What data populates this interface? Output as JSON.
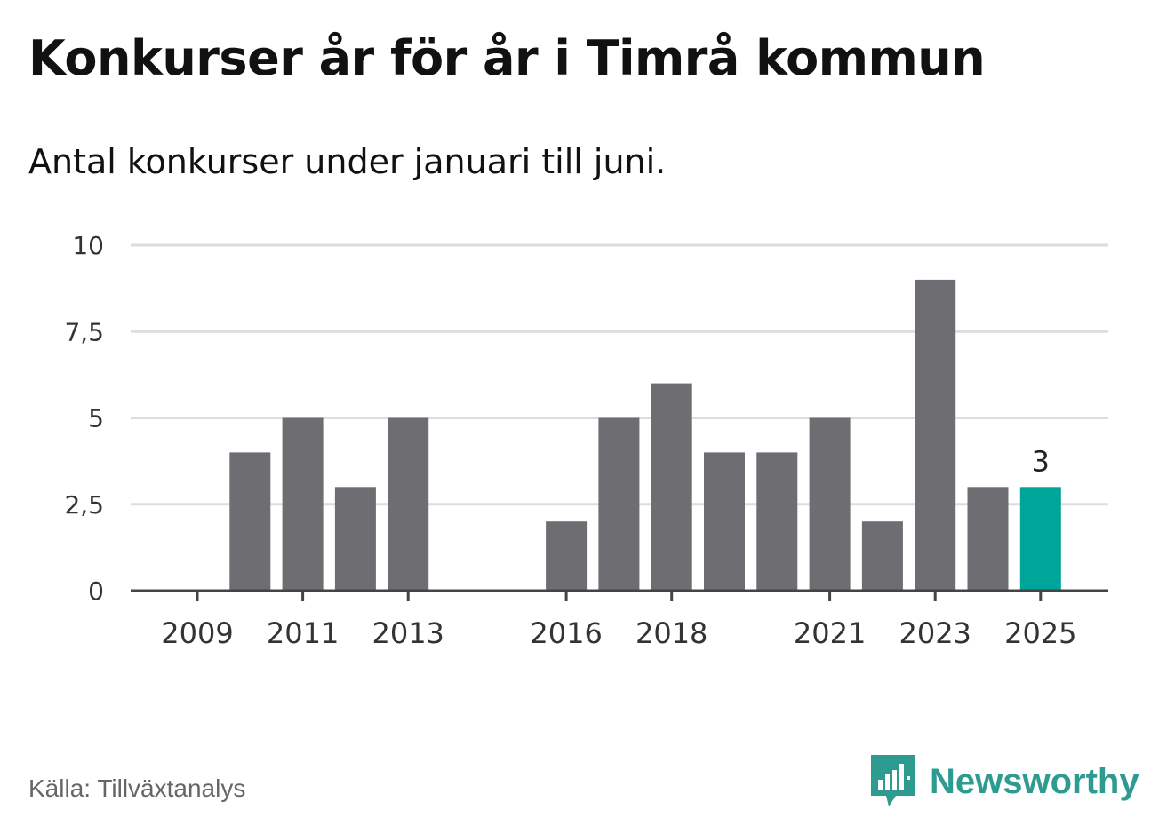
{
  "header": {
    "title": "Konkurser år för år i Timrå kommun",
    "subtitle": "Antal konkurser under januari till juni."
  },
  "footer": {
    "source": "Källa: Tillväxtanalys",
    "brand": "Newsworthy",
    "brand_icon": "newsworthy-bar-chart-speech-bubble-icon",
    "brand_color": "#2e9b91"
  },
  "colors": {
    "bar": "#6e6d72",
    "highlight": "#00a599",
    "grid": "#dddddd",
    "axis": "#444444"
  },
  "chart_data": {
    "type": "bar",
    "categories": [
      "2009",
      "2010",
      "2011",
      "2012",
      "2013",
      "2014",
      "2015",
      "2016",
      "2017",
      "2018",
      "2019",
      "2020",
      "2021",
      "2022",
      "2023",
      "2024",
      "2025"
    ],
    "values": [
      0,
      4,
      5,
      3,
      5,
      0,
      0,
      2,
      5,
      6,
      4,
      4,
      5,
      2,
      9,
      3,
      3
    ],
    "highlight_index": 16,
    "data_labels": [
      {
        "index": 16,
        "text": "3"
      }
    ],
    "x_tick_labels": [
      "2009",
      "2011",
      "2013",
      "2016",
      "2018",
      "2021",
      "2023",
      "2025"
    ],
    "y_ticks": [
      0,
      2.5,
      5,
      7.5,
      10
    ],
    "y_tick_labels": [
      "0",
      "2,5",
      "5",
      "7,5",
      "10"
    ],
    "ylim": [
      0,
      10
    ],
    "grid": true,
    "title": "Konkurser år för år i Timrå kommun",
    "subtitle": "Antal konkurser under januari till juni.",
    "xlabel": "",
    "ylabel": ""
  }
}
